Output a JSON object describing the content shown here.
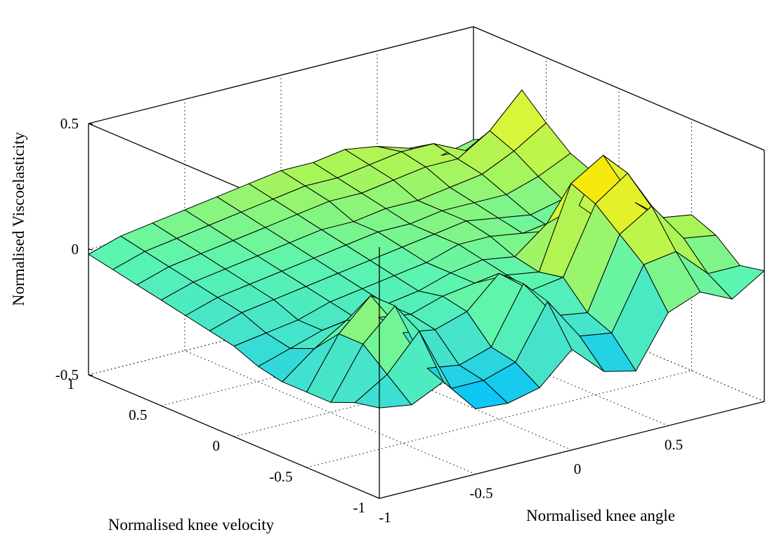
{
  "chart_data": {
    "type": "surface",
    "title": "",
    "xlabel": "Normalised knee angle",
    "ylabel": "Normalised knee velocity",
    "zlabel": "Normalised Viscoelasticity",
    "xlim": [
      -1,
      1
    ],
    "ylim": [
      -1,
      1
    ],
    "zlim": [
      -0.5,
      0.5
    ],
    "xticks": [
      "-1",
      "-0.5",
      "0",
      "0.5"
    ],
    "yticks": [
      "-1",
      "-0.5",
      "0",
      "0.5",
      "1"
    ],
    "zticks": [
      "-0.5",
      "0",
      "0.5"
    ],
    "grid": true,
    "colormap": [
      "#00bfff",
      "#40e0d0",
      "#5cf5b0",
      "#a8f55a",
      "#d8f53a",
      "#ffe500"
    ],
    "color_range": [
      -0.25,
      0.35
    ],
    "x": [
      -1.0,
      -0.833,
      -0.667,
      -0.5,
      -0.333,
      -0.167,
      0.0,
      0.167,
      0.333,
      0.5,
      0.667,
      0.833,
      1.0
    ],
    "y": [
      -1.0,
      -0.833,
      -0.667,
      -0.5,
      -0.333,
      -0.167,
      0.0,
      0.167,
      0.333,
      0.5,
      0.667,
      0.833,
      1.0
    ],
    "z": [
      [
        -0.14,
        -0.16,
        -0.1,
        -0.24,
        -0.25,
        -0.22,
        -0.1,
        -0.22,
        -0.25,
        -0.05,
        0.0,
        -0.06,
        0.02
      ],
      [
        -0.16,
        -0.08,
        0.06,
        -0.2,
        -0.2,
        -0.16,
        0.05,
        -0.12,
        -0.14,
        0.1,
        0.12,
        0.0,
        0.0
      ],
      [
        -0.2,
        0.0,
        0.12,
        -0.16,
        -0.18,
        -0.14,
        0.08,
        -0.08,
        -0.1,
        0.18,
        0.26,
        0.1,
        0.08
      ],
      [
        -0.2,
        0.0,
        0.12,
        -0.06,
        -0.08,
        -0.04,
        0.08,
        -0.02,
        0.0,
        0.26,
        0.35,
        0.14,
        0.12
      ],
      [
        -0.2,
        -0.1,
        -0.02,
        -0.04,
        -0.06,
        -0.02,
        0.0,
        0.0,
        -0.02,
        0.3,
        0.38,
        0.16,
        0.06
      ],
      [
        -0.18,
        -0.14,
        -0.1,
        -0.08,
        -0.06,
        -0.04,
        0.0,
        0.02,
        0.0,
        0.1,
        0.14,
        0.02,
        0.04
      ],
      [
        -0.14,
        -0.12,
        -0.1,
        -0.06,
        -0.04,
        -0.02,
        0.0,
        0.04,
        0.04,
        0.02,
        0.0,
        0.02,
        0.1
      ],
      [
        -0.12,
        -0.08,
        -0.06,
        -0.04,
        -0.02,
        0.0,
        0.02,
        0.04,
        0.06,
        0.04,
        0.02,
        0.05,
        0.12
      ],
      [
        -0.1,
        -0.06,
        -0.04,
        -0.02,
        0.0,
        0.02,
        0.04,
        0.04,
        0.06,
        0.06,
        0.06,
        0.1,
        0.16
      ],
      [
        -0.08,
        -0.04,
        -0.02,
        0.0,
        0.02,
        0.04,
        0.04,
        0.06,
        0.06,
        0.08,
        0.1,
        0.16,
        0.24
      ],
      [
        -0.06,
        -0.02,
        0.0,
        0.02,
        0.04,
        0.06,
        0.08,
        0.08,
        0.1,
        0.12,
        0.12,
        0.2,
        0.33
      ],
      [
        -0.04,
        0.0,
        0.02,
        0.04,
        0.06,
        0.08,
        0.1,
        0.1,
        0.12,
        0.14,
        0.14,
        0.08,
        0.1
      ],
      [
        -0.02,
        0.02,
        0.04,
        0.06,
        0.08,
        0.1,
        0.12,
        0.12,
        0.14,
        0.12,
        0.08,
        0.02,
        0.05
      ]
    ]
  }
}
